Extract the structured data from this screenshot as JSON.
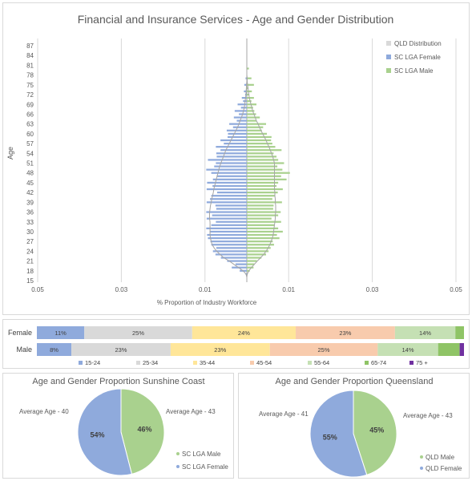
{
  "pyramid": {
    "title": "Financial and Insurance Services - Age and Gender Distribution",
    "ylabel": "Age",
    "xlabel": "% Proportion of Industry Workforce",
    "xtick_labels": [
      "0.05",
      "0.03",
      "0.01",
      "0.01",
      "0.03",
      "0.05"
    ],
    "legend": [
      "QLD Distribution",
      "SC LGA Female",
      "SC LGA Male"
    ],
    "colors": {
      "female": "#8faadc",
      "male": "#a9d18e",
      "qld": "#a6a6a6"
    }
  },
  "chart_data": [
    {
      "type": "bar",
      "subtype": "population-pyramid",
      "title": "Financial and Insurance Services - Age and Gender Distribution",
      "xlabel": "% Proportion of Industry Workforce",
      "ylabel": "Age",
      "xlim": [
        -0.05,
        0.05
      ],
      "age_ticks": [
        15,
        18,
        21,
        24,
        27,
        30,
        33,
        36,
        39,
        42,
        45,
        48,
        51,
        54,
        57,
        60,
        63,
        66,
        69,
        72,
        75,
        78,
        81,
        84,
        87
      ],
      "ages": [
        15,
        16,
        17,
        18,
        19,
        20,
        21,
        22,
        23,
        24,
        25,
        26,
        27,
        28,
        29,
        30,
        31,
        32,
        33,
        34,
        35,
        36,
        37,
        38,
        39,
        40,
        41,
        42,
        43,
        44,
        45,
        46,
        47,
        48,
        49,
        50,
        51,
        52,
        53,
        54,
        55,
        56,
        57,
        58,
        59,
        60,
        61,
        62,
        63,
        64,
        65,
        66,
        67,
        68,
        69,
        70,
        71,
        72,
        73,
        74,
        75,
        76,
        77,
        78,
        79,
        80,
        81,
        82,
        83,
        84,
        85,
        86,
        87
      ],
      "series": [
        {
          "name": "SC LGA Female",
          "values": [
            0,
            0,
            0.0003,
            0.0017,
            0.0036,
            0.0027,
            0.0047,
            0.0062,
            0.0075,
            0.0081,
            0.0073,
            0.0085,
            0.0087,
            0.0093,
            0.0095,
            0.0089,
            0.0097,
            0.0085,
            0.0074,
            0.0096,
            0.0083,
            0.0097,
            0.0073,
            0.0075,
            0.0096,
            0.0088,
            0.0085,
            0.0071,
            0.0096,
            0.0082,
            0.0095,
            0.0081,
            0.0072,
            0.0085,
            0.0097,
            0.0078,
            0.0074,
            0.0093,
            0.0072,
            0.0073,
            0.0063,
            0.0074,
            0.0055,
            0.0063,
            0.0046,
            0.0045,
            0.0048,
            0.0033,
            0.0042,
            0.0024,
            0.0031,
            0.0019,
            0.0029,
            0.0014,
            0.0022,
            0.0009,
            0.0012,
            0.0004,
            0.0007,
            0.0002,
            0.0006,
            0.0001,
            0.0003,
            0,
            0,
            0,
            0,
            0,
            0,
            0,
            0,
            0,
            0
          ]
        },
        {
          "name": "SC LGA Male",
          "values": [
            0,
            0,
            0.0002,
            0.0007,
            0.0016,
            0.0018,
            0.0024,
            0.0035,
            0.0046,
            0.0052,
            0.0057,
            0.0065,
            0.0062,
            0.0078,
            0.0072,
            0.0086,
            0.0075,
            0.0066,
            0.0082,
            0.0059,
            0.0075,
            0.0081,
            0.0063,
            0.0064,
            0.0084,
            0.0061,
            0.0067,
            0.0074,
            0.0086,
            0.0071,
            0.0075,
            0.0095,
            0.0082,
            0.0103,
            0.0085,
            0.0073,
            0.0089,
            0.0075,
            0.0071,
            0.0064,
            0.0083,
            0.0068,
            0.0061,
            0.0058,
            0.0059,
            0.0048,
            0.0036,
            0.0039,
            0.0046,
            0.0023,
            0.0031,
            0.0022,
            0.0018,
            0.0015,
            0.0023,
            0.0011,
            0.0017,
            0.0006,
            0.0012,
            0.0003,
            0.0017,
            0.0002,
            0.0011,
            0.0001,
            0,
            0.0005,
            0,
            0,
            0,
            0,
            0,
            0,
            0
          ]
        },
        {
          "name": "QLD Distribution",
          "female": [
            0,
            0,
            0.0002,
            0.0009,
            0.002,
            0.0031,
            0.0042,
            0.0055,
            0.0064,
            0.0072,
            0.0078,
            0.0083,
            0.0085,
            0.0087,
            0.0088,
            0.0088,
            0.0088,
            0.0088,
            0.0088,
            0.0089,
            0.0089,
            0.0089,
            0.0088,
            0.0087,
            0.0085,
            0.0084,
            0.0082,
            0.008,
            0.0079,
            0.0077,
            0.0075,
            0.0073,
            0.0071,
            0.0069,
            0.0067,
            0.0065,
            0.0062,
            0.0059,
            0.0056,
            0.0053,
            0.005,
            0.0046,
            0.0042,
            0.0038,
            0.0034,
            0.003,
            0.0026,
            0.0022,
            0.0019,
            0.0016,
            0.0013,
            0.001,
            0.0008,
            0.0006,
            0.0005,
            0.0004,
            0.0003,
            0.0002,
            0.0002,
            0.0001,
            0.0001,
            0,
            0,
            0,
            0,
            0,
            0,
            0,
            0,
            0,
            0,
            0,
            0
          ],
          "male": [
            0,
            0,
            0.0001,
            0.0005,
            0.0011,
            0.0018,
            0.0025,
            0.0033,
            0.004,
            0.0046,
            0.0051,
            0.0055,
            0.0058,
            0.0061,
            0.0063,
            0.0064,
            0.0065,
            0.0066,
            0.0067,
            0.0068,
            0.0068,
            0.0069,
            0.0069,
            0.0069,
            0.0068,
            0.0068,
            0.0067,
            0.0067,
            0.0066,
            0.0066,
            0.0066,
            0.0066,
            0.0066,
            0.0066,
            0.0066,
            0.0066,
            0.0066,
            0.0064,
            0.0062,
            0.0059,
            0.0056,
            0.0053,
            0.0049,
            0.0046,
            0.0042,
            0.0038,
            0.0034,
            0.003,
            0.0027,
            0.0023,
            0.002,
            0.0017,
            0.0014,
            0.0012,
            0.001,
            0.0008,
            0.0006,
            0.0005,
            0.0004,
            0.0003,
            0.0002,
            0.0001,
            0.0001,
            0,
            0,
            0,
            0,
            0,
            0,
            0,
            0,
            0,
            0
          ]
        }
      ]
    },
    {
      "type": "bar",
      "subtype": "stacked-100",
      "categories": [
        "Female",
        "Male"
      ],
      "series": [
        {
          "name": "15-24",
          "color": "#8faadc",
          "values": [
            11,
            8
          ]
        },
        {
          "name": "25-34",
          "color": "#d9d9d9",
          "values": [
            25,
            23
          ]
        },
        {
          "name": "35-44",
          "color": "#ffe699",
          "values": [
            24,
            23
          ]
        },
        {
          "name": "45-54",
          "color": "#f8cbad",
          "values": [
            23,
            25
          ]
        },
        {
          "name": "55-64",
          "color": "#c5e0b4",
          "values": [
            14,
            14
          ]
        },
        {
          "name": "65-74",
          "color": "#8fc466",
          "values": [
            2,
            5
          ]
        },
        {
          "name": "75 +",
          "color": "#7030a0",
          "values": [
            0,
            1
          ]
        }
      ],
      "labels": [
        [
          "11%",
          "25%",
          "24%",
          "23%",
          "14%"
        ],
        [
          "8%",
          "23%",
          "23%",
          "25%",
          "14%"
        ]
      ],
      "legend_position": "bottom"
    },
    {
      "type": "pie",
      "title": "Age and Gender Proportion Sunshine Coast",
      "slices": [
        {
          "name": "SC LGA Male",
          "value": 46,
          "label": "46%",
          "color": "#a9d18e",
          "annotation": "Average Age - 43"
        },
        {
          "name": "SC LGA Female",
          "value": 54,
          "label": "54%",
          "color": "#8faadc",
          "annotation": "Average Age - 40"
        }
      ],
      "legend_position": "bottom-right"
    },
    {
      "type": "pie",
      "title": "Age and Gender Proportion Queensland",
      "slices": [
        {
          "name": "QLD Male",
          "value": 45,
          "label": "45%",
          "color": "#a9d18e",
          "annotation": "Average Age - 43"
        },
        {
          "name": "QLD Female",
          "value": 55,
          "label": "55%",
          "color": "#8faadc",
          "annotation": "Average Age - 41"
        }
      ],
      "legend_position": "bottom-right"
    }
  ]
}
